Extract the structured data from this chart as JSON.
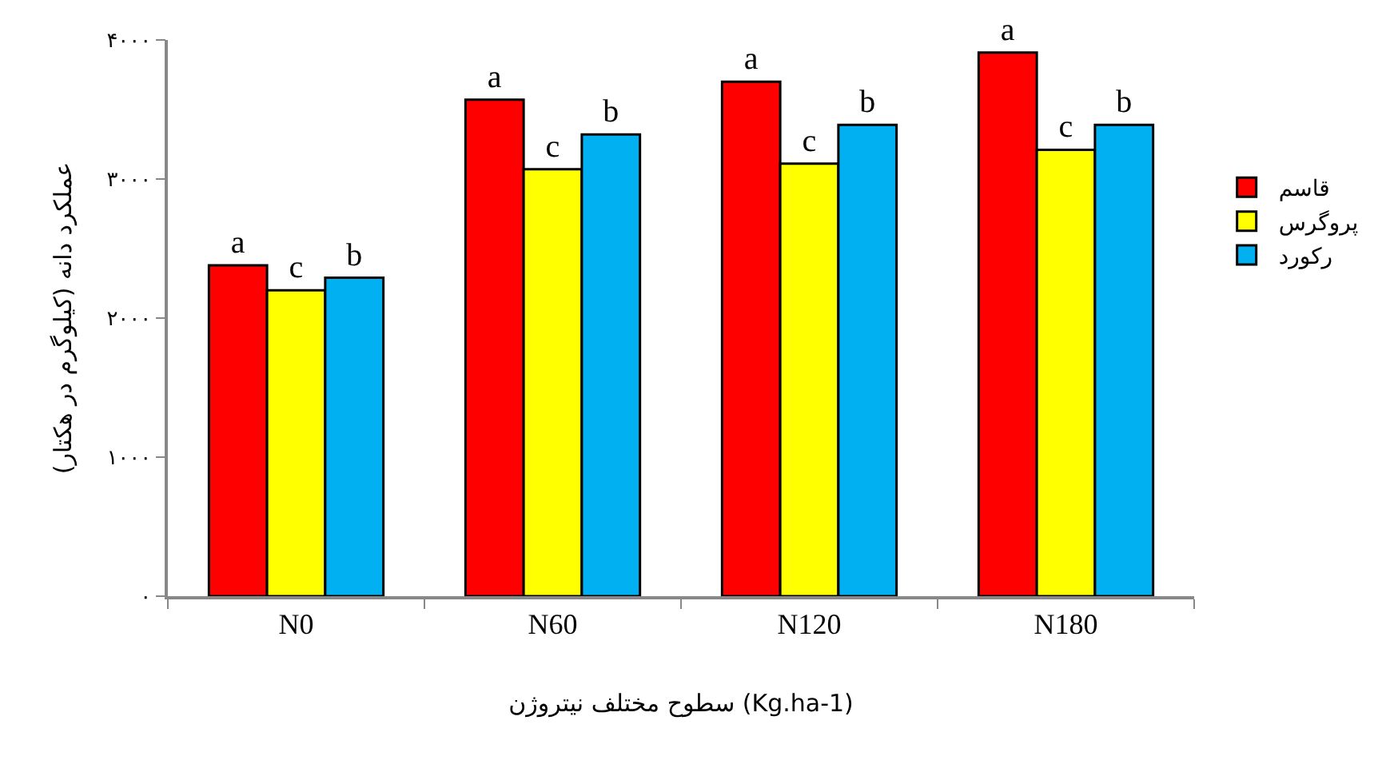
{
  "chart_data": {
    "type": "bar",
    "xlabel": "سطوح مختلف نیتروژن (Kg.ha-1)",
    "ylabel": "عملکرد دانه (کیلوگرم در هکتار)",
    "categories": [
      "N0",
      "N60",
      "N120",
      "N180"
    ],
    "series": [
      {
        "name": "قاسم",
        "color": "#ff0000",
        "values": [
          2380,
          3570,
          3700,
          3910
        ],
        "value_labels": [
          "a",
          "a",
          "a",
          "a"
        ]
      },
      {
        "name": "پروگرس",
        "color": "#ffff00",
        "values": [
          2200,
          3070,
          3110,
          3210
        ],
        "value_labels": [
          "c",
          "c",
          "c",
          "c"
        ]
      },
      {
        "name": "رکورد",
        "color": "#00b0f0",
        "values": [
          2290,
          3320,
          3390,
          3390
        ],
        "value_labels": [
          "b",
          "b",
          "b",
          "b"
        ]
      }
    ],
    "ylim": [
      0,
      4000
    ],
    "yticks": [
      {
        "value": 0,
        "label": "۰"
      },
      {
        "value": 1000,
        "label": "۱۰۰۰"
      },
      {
        "value": 2000,
        "label": "۲۰۰۰"
      },
      {
        "value": 3000,
        "label": "۳۰۰۰"
      },
      {
        "value": 4000,
        "label": "۴۰۰۰"
      }
    ],
    "grid": false,
    "legend": "right"
  }
}
